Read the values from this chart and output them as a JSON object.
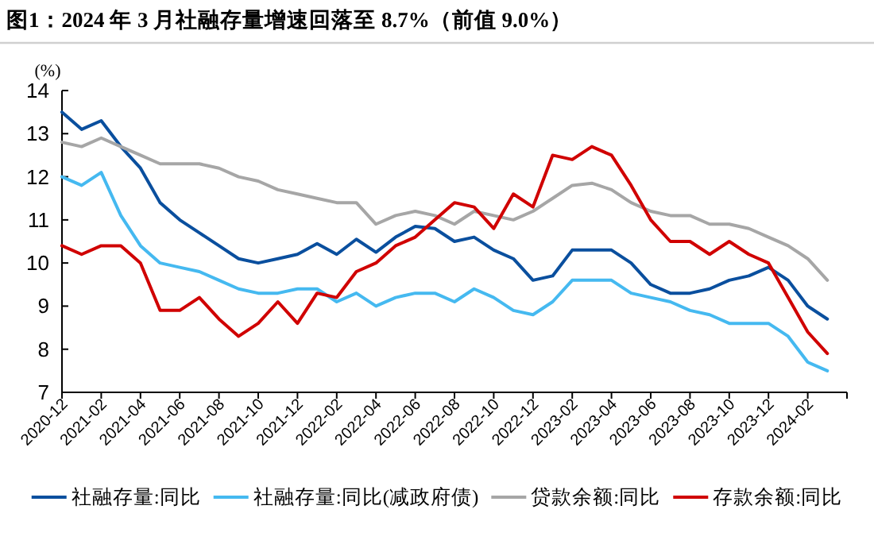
{
  "chart_data": {
    "type": "line",
    "title": "图1：2024 年 3 月社融存量增速回落至 8.7%（前值 9.0%）",
    "ylabel": "(%)",
    "x": [
      "2020-12",
      "2021-01",
      "2021-02",
      "2021-03",
      "2021-04",
      "2021-05",
      "2021-06",
      "2021-07",
      "2021-08",
      "2021-09",
      "2021-10",
      "2021-11",
      "2021-12",
      "2022-01",
      "2022-02",
      "2022-03",
      "2022-04",
      "2022-05",
      "2022-06",
      "2022-07",
      "2022-08",
      "2022-09",
      "2022-10",
      "2022-11",
      "2022-12",
      "2023-01",
      "2023-02",
      "2023-03",
      "2023-04",
      "2023-05",
      "2023-06",
      "2023-07",
      "2023-08",
      "2023-09",
      "2023-10",
      "2023-11",
      "2023-12",
      "2024-01",
      "2024-02",
      "2024-03"
    ],
    "series": [
      {
        "name": "社融存量:同比",
        "color": "#0a4f9e",
        "values": [
          13.5,
          13.1,
          13.3,
          12.7,
          12.2,
          11.4,
          11.0,
          10.7,
          10.4,
          10.1,
          10.0,
          10.1,
          10.2,
          10.45,
          10.2,
          10.55,
          10.25,
          10.6,
          10.85,
          10.8,
          10.5,
          10.6,
          10.3,
          10.1,
          9.6,
          9.7,
          10.3,
          10.3,
          10.3,
          10.0,
          9.5,
          9.3,
          9.3,
          9.4,
          9.6,
          9.7,
          9.9,
          9.6,
          9.0,
          8.7
        ]
      },
      {
        "name": "社融存量:同比(减政府债)",
        "color": "#45b9f0",
        "values": [
          12.0,
          11.8,
          12.1,
          11.1,
          10.4,
          10.0,
          9.9,
          9.8,
          9.6,
          9.4,
          9.3,
          9.3,
          9.4,
          9.4,
          9.1,
          9.3,
          9.0,
          9.2,
          9.3,
          9.3,
          9.1,
          9.4,
          9.2,
          8.9,
          8.8,
          9.1,
          9.6,
          9.6,
          9.6,
          9.3,
          9.2,
          9.1,
          8.9,
          8.8,
          8.6,
          8.6,
          8.6,
          8.3,
          7.7,
          7.5
        ]
      },
      {
        "name": "贷款余额:同比",
        "color": "#a6a6a6",
        "values": [
          12.8,
          12.7,
          12.9,
          12.7,
          12.5,
          12.3,
          12.3,
          12.3,
          12.2,
          12.0,
          11.9,
          11.7,
          11.6,
          11.5,
          11.4,
          11.4,
          10.9,
          11.1,
          11.2,
          11.1,
          10.9,
          11.2,
          11.1,
          11.0,
          11.2,
          11.5,
          11.8,
          11.85,
          11.7,
          11.4,
          11.2,
          11.1,
          11.1,
          10.9,
          10.9,
          10.8,
          10.6,
          10.4,
          10.1,
          9.6
        ]
      },
      {
        "name": "存款余额:同比",
        "color": "#d00000",
        "values": [
          10.4,
          10.2,
          10.4,
          10.4,
          10.0,
          8.9,
          8.9,
          9.2,
          8.7,
          8.3,
          8.6,
          9.1,
          8.6,
          9.3,
          9.2,
          9.8,
          10.0,
          10.4,
          10.6,
          11.0,
          11.4,
          11.3,
          10.8,
          11.6,
          11.3,
          12.5,
          12.4,
          12.7,
          12.5,
          11.8,
          11.0,
          10.5,
          10.5,
          10.2,
          10.5,
          10.2,
          10.0,
          9.2,
          8.4,
          7.9
        ]
      }
    ],
    "xlim": [
      "2020-12",
      "2024-04"
    ],
    "xticks": [
      "2020-12",
      "2021-02",
      "2021-04",
      "2021-06",
      "2021-08",
      "2021-10",
      "2021-12",
      "2022-02",
      "2022-04",
      "2022-06",
      "2022-08",
      "2022-10",
      "2022-12",
      "2023-02",
      "2023-04",
      "2023-06",
      "2023-08",
      "2023-10",
      "2023-12",
      "2024-02"
    ],
    "ylim": [
      7,
      14
    ],
    "yticks": [
      7,
      8,
      9,
      10,
      11,
      12,
      13,
      14
    ],
    "grid": false,
    "legend": "bottom",
    "marker": "none",
    "line_style": "solid"
  }
}
